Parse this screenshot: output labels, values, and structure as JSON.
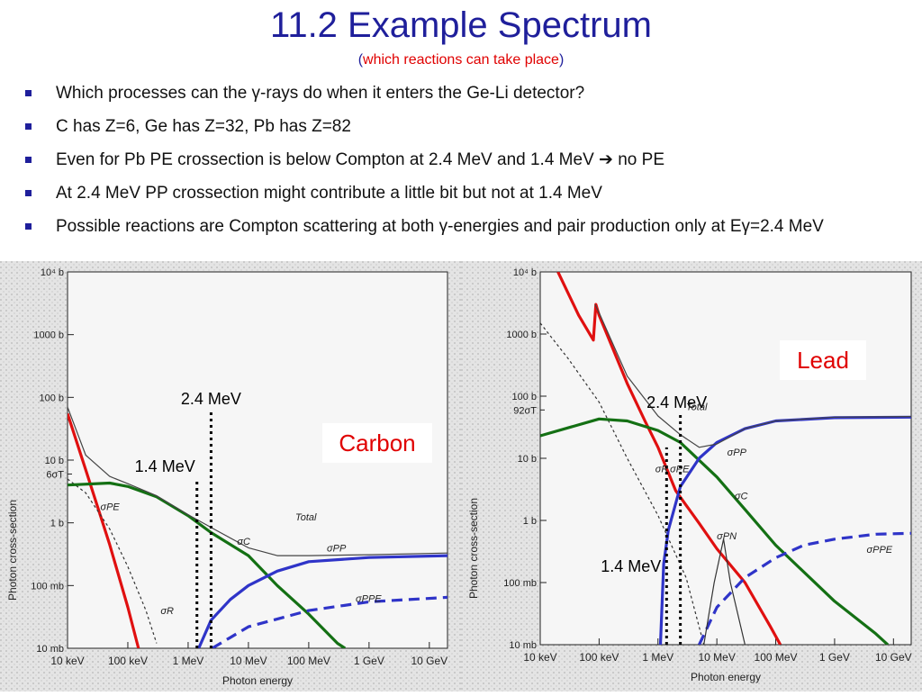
{
  "slide": {
    "title": "11.2 Example Spectrum",
    "subtitle_open": "(",
    "subtitle_red": "which reactions can take place",
    "subtitle_close": ")",
    "bullets": [
      {
        "pre": "Which processes can the ",
        "sym": "γ",
        "post": "-rays do when it enters the Ge-Li detector?"
      },
      {
        "pre": "C has Z=6, Ge has Z=32, Pb has Z=82",
        "sym": "",
        "post": ""
      },
      {
        "pre": "Even for Pb PE crossection is below Compton at 2.4 MeV and 1.4 MeV ",
        "sym": "➔",
        "post": " no PE"
      },
      {
        "pre": "At 2.4 MeV PP crossection might contribute a little bit but not at 1.4 MeV",
        "sym": "",
        "post": ""
      },
      {
        "pre": "Possible reactions are Compton scattering at both ",
        "sym": "γ",
        "post": "-energies and pair production only at Eγ=2.4 MeV"
      }
    ]
  },
  "chart_data": [
    {
      "type": "line",
      "label_box": "Carbon",
      "xlabel": "Photon energy",
      "ylabel": "Photon cross-section",
      "x_log": true,
      "y_log": true,
      "xlim_MeV": [
        0.01,
        20000
      ],
      "ylim_b": [
        0.01,
        10000
      ],
      "x_ticks": [
        {
          "v": 0.01,
          "label": "10 keV"
        },
        {
          "v": 0.1,
          "label": "100 keV"
        },
        {
          "v": 1,
          "label": "1 MeV"
        },
        {
          "v": 10,
          "label": "10 MeV"
        },
        {
          "v": 100,
          "label": "100 MeV"
        },
        {
          "v": 1000,
          "label": "1 GeV"
        },
        {
          "v": 10000,
          "label": "10 GeV"
        }
      ],
      "y_ticks": [
        {
          "v": 10000,
          "label": "10⁴ b"
        },
        {
          "v": 1000,
          "label": "1000 b"
        },
        {
          "v": 100,
          "label": "100 b"
        },
        {
          "v": 10,
          "label": "10 b"
        },
        {
          "v": 1,
          "label": "1 b"
        },
        {
          "v": 0.1,
          "label": "100 mb"
        },
        {
          "v": 0.01,
          "label": "10 mb"
        }
      ],
      "extra_y_labels": [
        {
          "v": 6,
          "label": "6σT"
        }
      ],
      "markers": [
        {
          "x": 1.4,
          "label": "1.4 MeV",
          "y_from": 0.01,
          "y_to": 5
        },
        {
          "x": 2.4,
          "label": "2.4 MeV",
          "y_from": 0.01,
          "y_to": 60
        }
      ],
      "annotations": [
        {
          "x": 0.035,
          "y": 1.6,
          "text": "σPE"
        },
        {
          "x": 0.35,
          "y": 0.035,
          "text": "σR"
        },
        {
          "x": 6.5,
          "y": 0.45,
          "text": "σC"
        },
        {
          "x": 200,
          "y": 0.35,
          "text": "σPP"
        },
        {
          "x": 600,
          "y": 0.055,
          "text": "σPPE"
        },
        {
          "x": 60,
          "y": 1.1,
          "text": "Total"
        }
      ],
      "series": [
        {
          "name": "σPE",
          "color": "#e01010",
          "dash": "",
          "points": [
            [
              0.01,
              55
            ],
            [
              0.02,
              7
            ],
            [
              0.05,
              0.45
            ],
            [
              0.1,
              0.045
            ],
            [
              0.15,
              0.01
            ]
          ]
        },
        {
          "name": "σR",
          "color": "#333333",
          "dash": "3,3",
          "points": [
            [
              0.01,
              5
            ],
            [
              0.02,
              3
            ],
            [
              0.05,
              0.8
            ],
            [
              0.1,
              0.2
            ],
            [
              0.2,
              0.04
            ],
            [
              0.3,
              0.012
            ]
          ]
        },
        {
          "name": "σC",
          "color": "#147014",
          "dash": "",
          "points": [
            [
              0.01,
              4
            ],
            [
              0.05,
              4.3
            ],
            [
              0.1,
              3.8
            ],
            [
              0.3,
              2.6
            ],
            [
              1,
              1.3
            ],
            [
              2.4,
              0.7
            ],
            [
              10,
              0.3
            ],
            [
              30,
              0.1
            ],
            [
              100,
              0.035
            ],
            [
              300,
              0.012
            ],
            [
              400,
              0.01
            ]
          ]
        },
        {
          "name": "σPP",
          "color": "#2f34c8",
          "dash": "",
          "points": [
            [
              1.5,
              0.01
            ],
            [
              2.4,
              0.028
            ],
            [
              5,
              0.06
            ],
            [
              10,
              0.1
            ],
            [
              30,
              0.17
            ],
            [
              100,
              0.24
            ],
            [
              1000,
              0.28
            ],
            [
              20000,
              0.3
            ]
          ]
        },
        {
          "name": "σPPE",
          "color": "#2f34c8",
          "dash": "12,7",
          "points": [
            [
              2.5,
              0.01
            ],
            [
              10,
              0.022
            ],
            [
              100,
              0.04
            ],
            [
              1000,
              0.055
            ],
            [
              20000,
              0.065
            ]
          ]
        },
        {
          "name": "Total",
          "color": "#444444",
          "dash": "",
          "points": [
            [
              0.01,
              70
            ],
            [
              0.02,
              12
            ],
            [
              0.05,
              5.5
            ],
            [
              0.1,
              4.2
            ],
            [
              0.3,
              2.7
            ],
            [
              1,
              1.35
            ],
            [
              3,
              0.75
            ],
            [
              10,
              0.4
            ],
            [
              30,
              0.3
            ],
            [
              100,
              0.3
            ],
            [
              1000,
              0.31
            ],
            [
              20000,
              0.33
            ]
          ]
        }
      ]
    },
    {
      "type": "line",
      "label_box": "Lead",
      "xlabel": "Photon energy",
      "ylabel": "Photon cross-section",
      "x_log": true,
      "y_log": true,
      "xlim_MeV": [
        0.01,
        20000
      ],
      "ylim_b": [
        0.01,
        10000
      ],
      "x_ticks": [
        {
          "v": 0.01,
          "label": "10 keV"
        },
        {
          "v": 0.1,
          "label": "100 keV"
        },
        {
          "v": 1,
          "label": "1 MeV"
        },
        {
          "v": 10,
          "label": "10 MeV"
        },
        {
          "v": 100,
          "label": "100 MeV"
        },
        {
          "v": 1000,
          "label": "1 GeV"
        },
        {
          "v": 10000,
          "label": "10 GeV"
        }
      ],
      "y_ticks": [
        {
          "v": 10000,
          "label": "10⁴ b"
        },
        {
          "v": 1000,
          "label": "1000 b"
        },
        {
          "v": 100,
          "label": "100 b"
        },
        {
          "v": 10,
          "label": "10 b"
        },
        {
          "v": 1,
          "label": "1 b"
        },
        {
          "v": 0.1,
          "label": "100 mb"
        },
        {
          "v": 0.01,
          "label": "10 mb"
        }
      ],
      "extra_y_labels": [
        {
          "v": 60,
          "label": "92σT"
        }
      ],
      "markers": [
        {
          "x": 1.4,
          "label": "1.4 MeV",
          "y_from": 0.01,
          "y_to": 15
        },
        {
          "x": 2.4,
          "label": "2.4 MeV",
          "y_from": 0.01,
          "y_to": 50
        }
      ],
      "annotations": [
        {
          "x": 0.9,
          "y": 6,
          "text": "σR"
        },
        {
          "x": 1.6,
          "y": 6,
          "text": "σPE"
        },
        {
          "x": 15,
          "y": 11,
          "text": "σPP"
        },
        {
          "x": 20,
          "y": 2.2,
          "text": "σC"
        },
        {
          "x": 10,
          "y": 0.5,
          "text": "σPN"
        },
        {
          "x": 3500,
          "y": 0.3,
          "text": "σPPE"
        },
        {
          "x": 3,
          "y": 60,
          "text": "Total"
        }
      ],
      "series": [
        {
          "name": "σPE",
          "color": "#e01010",
          "dash": "",
          "points": [
            [
              0.02,
              10000
            ],
            [
              0.045,
              2000
            ],
            [
              0.08,
              800
            ],
            [
              0.088,
              3000
            ],
            [
              0.1,
              2000
            ],
            [
              0.3,
              160
            ],
            [
              0.6,
              40
            ],
            [
              1,
              15
            ],
            [
              2,
              3
            ],
            [
              5,
              0.9
            ],
            [
              10,
              0.35
            ],
            [
              30,
              0.1
            ],
            [
              80,
              0.02
            ],
            [
              120,
              0.01
            ]
          ]
        },
        {
          "name": "σR",
          "color": "#333333",
          "dash": "3,3",
          "points": [
            [
              0.01,
              1500
            ],
            [
              0.03,
              400
            ],
            [
              0.1,
              80
            ],
            [
              0.3,
              10
            ],
            [
              1,
              1.2
            ],
            [
              3,
              0.12
            ],
            [
              6,
              0.01
            ]
          ]
        },
        {
          "name": "σC",
          "color": "#147014",
          "dash": "",
          "points": [
            [
              0.01,
              23
            ],
            [
              0.1,
              43
            ],
            [
              0.3,
              40
            ],
            [
              1,
              28
            ],
            [
              2.4,
              18
            ],
            [
              10,
              5
            ],
            [
              30,
              1.5
            ],
            [
              100,
              0.4
            ],
            [
              1000,
              0.05
            ],
            [
              5000,
              0.015
            ],
            [
              8000,
              0.01
            ]
          ]
        },
        {
          "name": "σPP",
          "color": "#2f34c8",
          "dash": "",
          "points": [
            [
              1.1,
              0.01
            ],
            [
              1.25,
              0.2
            ],
            [
              1.5,
              0.7
            ],
            [
              2.4,
              3.5
            ],
            [
              5,
              10
            ],
            [
              10,
              18
            ],
            [
              30,
              30
            ],
            [
              100,
              40
            ],
            [
              1000,
              45
            ],
            [
              20000,
              46
            ]
          ]
        },
        {
          "name": "σPPE",
          "color": "#2f34c8",
          "dash": "12,7",
          "points": [
            [
              5,
              0.01
            ],
            [
              10,
              0.04
            ],
            [
              30,
              0.12
            ],
            [
              100,
              0.25
            ],
            [
              300,
              0.4
            ],
            [
              1000,
              0.5
            ],
            [
              5000,
              0.6
            ],
            [
              20000,
              0.62
            ]
          ]
        },
        {
          "name": "σPN",
          "color": "#333333",
          "dash": "",
          "points": [
            [
              6,
              0.01
            ],
            [
              9,
              0.1
            ],
            [
              13,
              0.5
            ],
            [
              17,
              0.1
            ],
            [
              30,
              0.01
            ]
          ]
        },
        {
          "name": "Total",
          "color": "#444444",
          "dash": "",
          "points": [
            [
              0.085,
              3000
            ],
            [
              0.1,
              2200
            ],
            [
              0.3,
              210
            ],
            [
              1,
              48
            ],
            [
              2.4,
              24
            ],
            [
              5,
              15
            ],
            [
              10,
              17
            ],
            [
              30,
              30
            ],
            [
              100,
              40
            ],
            [
              1000,
              46
            ],
            [
              20000,
              47
            ]
          ]
        }
      ]
    }
  ]
}
